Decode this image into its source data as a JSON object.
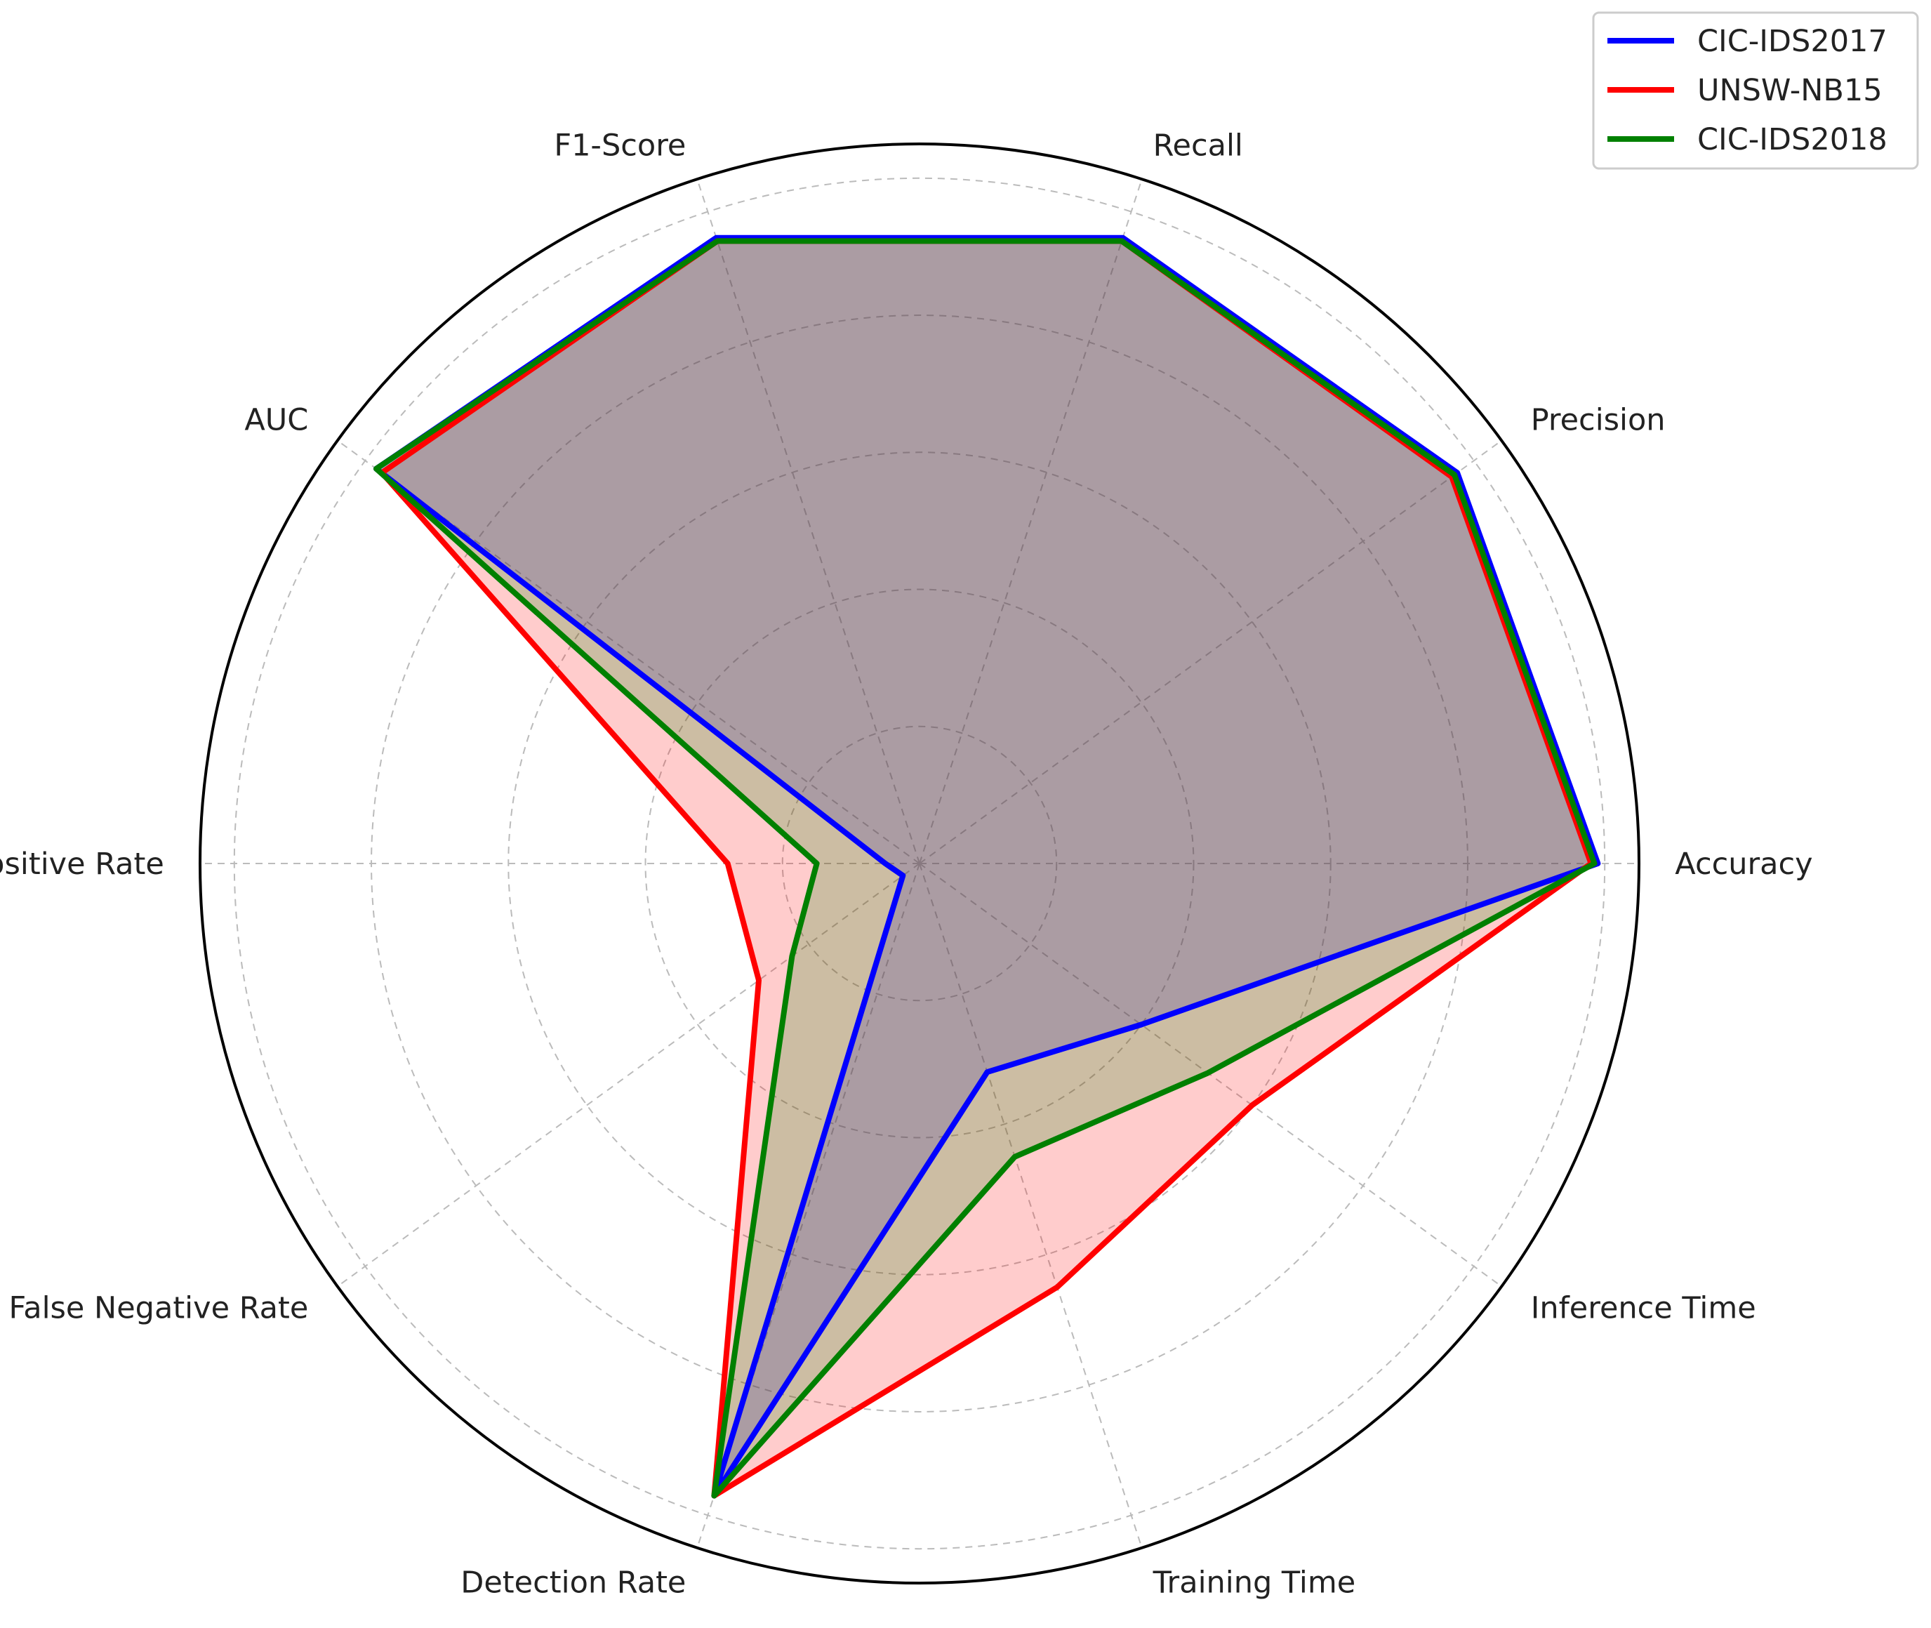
{
  "chart_data": {
    "type": "radar",
    "axes": [
      "Accuracy",
      "Precision",
      "Recall",
      "F1-Score",
      "AUC",
      "False Positive Rate",
      "False Negative Rate",
      "Detection Rate",
      "Training Time",
      "Inference Time"
    ],
    "rmax": 1.05,
    "grid": true,
    "legend_position": "top-right",
    "series": [
      {
        "name": "CIC-IDS2017",
        "color": "#0000ff",
        "fill": "#0000ff",
        "values": [
          0.99,
          0.97,
          0.96,
          0.96,
          0.98,
          0.05,
          0.03,
          0.97,
          0.32,
          0.4
        ]
      },
      {
        "name": "UNSW-NB15",
        "color": "#ff0000",
        "fill": "#ff0000",
        "values": [
          0.98,
          0.96,
          0.955,
          0.955,
          0.97,
          0.28,
          0.29,
          0.97,
          0.65,
          0.6
        ]
      },
      {
        "name": "CIC-IDS2018",
        "color": "#008000",
        "fill": "#008000",
        "values": [
          0.985,
          0.965,
          0.955,
          0.955,
          0.98,
          0.15,
          0.23,
          0.97,
          0.45,
          0.52
        ]
      }
    ],
    "fill_alpha": 0.2,
    "grid_rings": [
      0.2,
      0.4,
      0.6,
      0.8,
      1.0
    ]
  }
}
